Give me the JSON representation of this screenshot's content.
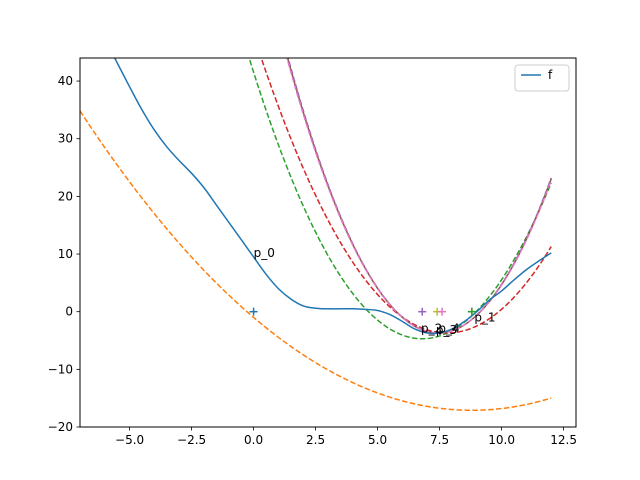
{
  "chart_data": {
    "type": "line",
    "xlim": [
      -7,
      13
    ],
    "ylim": [
      -20,
      44
    ],
    "xticks": [
      -5.0,
      -2.5,
      0.0,
      2.5,
      5.0,
      7.5,
      10.0,
      12.5
    ],
    "xtick_labels": [
      "−5.0",
      "−2.5",
      "0.0",
      "2.5",
      "5.0",
      "7.5",
      "10.0",
      "12.5"
    ],
    "yticks": [
      -20,
      -10,
      0,
      10,
      20,
      30,
      40
    ],
    "ytick_labels": [
      "−20",
      "−10",
      "0",
      "10",
      "20",
      "30",
      "40"
    ],
    "grid": false,
    "legend": {
      "position": "upper-right",
      "entries": [
        {
          "label": "f",
          "color": "#1f77b4"
        }
      ]
    },
    "f_series": {
      "name": "f",
      "color": "#1f77b4",
      "x": [
        -5.6,
        -5.0,
        -4.5,
        -4.0,
        -3.5,
        -3.0,
        -2.5,
        -2.0,
        -1.5,
        -1.0,
        -0.5,
        0.0,
        0.5,
        1.0,
        1.5,
        2.0,
        2.5,
        3.0,
        3.5,
        4.0,
        4.5,
        5.0,
        5.5,
        6.0,
        6.5,
        7.0,
        7.5,
        8.0,
        8.5,
        9.0,
        9.5,
        10.0,
        10.5,
        11.0,
        11.5,
        12.0
      ],
      "y": [
        44,
        39.0,
        35.0,
        31.5,
        28.6,
        26.2,
        24.0,
        21.5,
        18.5,
        15.5,
        12.5,
        9.5,
        6.5,
        4.0,
        2.2,
        1.0,
        0.6,
        0.5,
        0.5,
        0.5,
        0.4,
        0.2,
        -0.5,
        -1.7,
        -3.0,
        -3.7,
        -3.7,
        -3.0,
        -1.7,
        0.0,
        2.0,
        3.6,
        5.5,
        7.3,
        8.8,
        10.2
      ]
    },
    "quadratic_models": [
      {
        "color": "#ff7f0e",
        "center": 8.8,
        "curvature": 0.208,
        "min": -17.1,
        "x_start": -7.0
      },
      {
        "color": "#2ca02c",
        "center": 6.8,
        "curvature": 1.0,
        "min": -4.7,
        "x_start": -7.0
      },
      {
        "color": "#d62728",
        "center": 7.8,
        "curvature": 0.85,
        "min": -3.7,
        "x_start": -7.0
      },
      {
        "color": "#9467bd",
        "center": 7.45,
        "curvature": 1.3,
        "min": -3.7,
        "x_start": -7.0
      },
      {
        "color": "#8c564b",
        "center": 7.45,
        "curvature": 1.29,
        "min": -3.7,
        "x_start": -7.0
      },
      {
        "color": "#e377c2",
        "center": 7.45,
        "curvature": 1.28,
        "min": -3.7,
        "x_start": -7.0
      }
    ],
    "model_x_end": 12.0,
    "points": [
      {
        "x": 0.0,
        "y": 0,
        "color": "#1f77b4"
      },
      {
        "x": 8.8,
        "y": 0,
        "color": "#ff7f0e"
      },
      {
        "x": 8.8,
        "y": 0,
        "color": "#2ca02c"
      },
      {
        "x": 6.8,
        "y": 0,
        "color": "#9467bd"
      },
      {
        "x": 7.4,
        "y": 0,
        "color": "#bcbd22"
      },
      {
        "x": 7.6,
        "y": 0,
        "color": "#e377c2"
      }
    ],
    "annotations": [
      {
        "text": "p_0",
        "x": 0.0,
        "y": 9.5
      },
      {
        "text": "p_1",
        "x": 8.9,
        "y": -1.7
      },
      {
        "text": "p_2",
        "x": 6.75,
        "y": -3.6
      },
      {
        "text": "p_3",
        "x": 7.35,
        "y": -3.9
      },
      {
        "text": "p_4",
        "x": 7.45,
        "y": -3.6
      }
    ]
  }
}
